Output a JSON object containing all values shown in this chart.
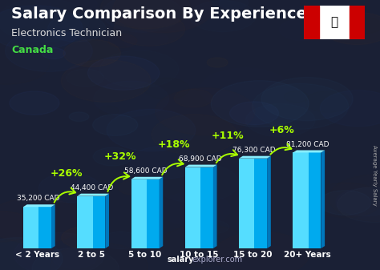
{
  "title": "Salary Comparison By Experience",
  "subtitle": "Electronics Technician",
  "country": "Canada",
  "watermark_salary": "salary",
  "watermark_explorer": "explorer.com",
  "ylabel": "Average Yearly Salary",
  "categories": [
    "< 2 Years",
    "2 to 5",
    "5 to 10",
    "10 to 15",
    "15 to 20",
    "20+ Years"
  ],
  "values": [
    35200,
    44400,
    58600,
    68900,
    76300,
    81200
  ],
  "value_labels": [
    "35,200 CAD",
    "44,400 CAD",
    "58,600 CAD",
    "68,900 CAD",
    "76,300 CAD",
    "81,200 CAD"
  ],
  "pct_labels": [
    "+26%",
    "+32%",
    "+18%",
    "+11%",
    "+6%"
  ],
  "bar_color_main": "#00aaee",
  "bar_color_light": "#55ddff",
  "bar_color_dark": "#0077bb",
  "bar_color_top": "#88eeff",
  "title_color": "#ffffff",
  "subtitle_color": "#dddddd",
  "country_color": "#44dd44",
  "value_label_color": "#ffffff",
  "pct_color": "#aaff00",
  "arrow_color": "#aaff00",
  "watermark_color": "#aaaacc",
  "watermark_bold_color": "#ffffff",
  "ylabel_color": "#aaaaaa",
  "bg_color": "#1a2035",
  "title_fontsize": 14,
  "subtitle_fontsize": 9,
  "country_fontsize": 9,
  "value_fontsize": 6.5,
  "pct_fontsize": 9,
  "cat_fontsize": 7.5,
  "watermark_fontsize": 7
}
